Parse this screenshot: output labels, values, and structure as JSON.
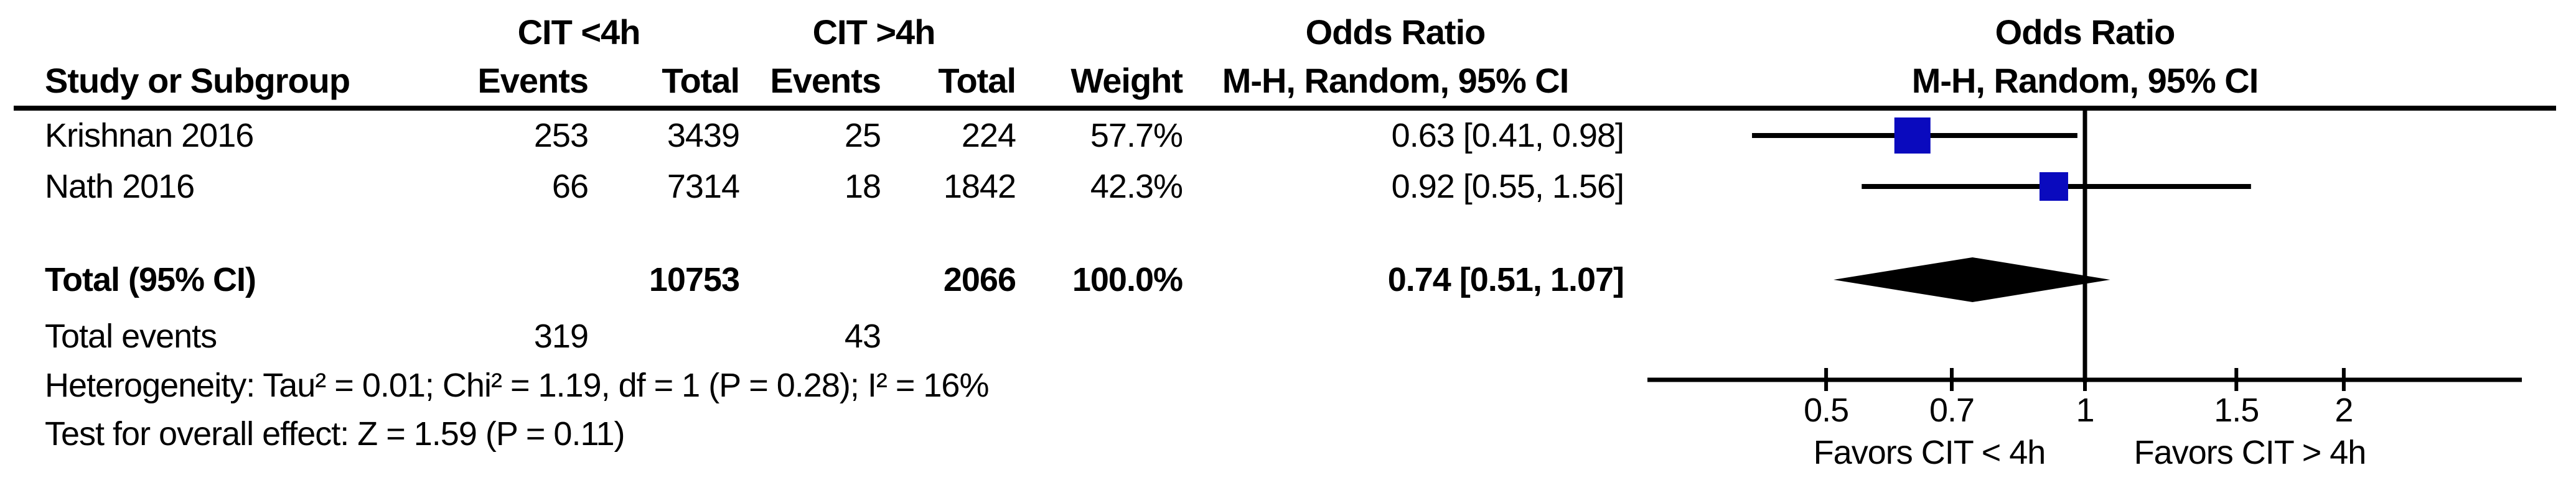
{
  "table": {
    "group_headers": {
      "group1": "CIT <4h",
      "group2": "CIT >4h",
      "or_title": "Odds Ratio",
      "or_subtitle": "M-H, Random, 95% CI"
    },
    "col_headers": {
      "study": "Study or Subgroup",
      "events1": "Events",
      "total1": "Total",
      "events2": "Events",
      "total2": "Total",
      "weight": "Weight",
      "or_ci": "M-H, Random, 95% CI"
    },
    "rows": [
      {
        "study": "Krishnan 2016",
        "events1": "253",
        "total1": "3439",
        "events2": "25",
        "total2": "224",
        "weight": "57.7%",
        "or_ci": "0.63 [0.41, 0.98]"
      },
      {
        "study": "Nath 2016",
        "events1": "66",
        "total1": "7314",
        "events2": "18",
        "total2": "1842",
        "weight": "42.3%",
        "or_ci": "0.92 [0.55, 1.56]"
      }
    ],
    "total_row": {
      "label": "Total (95% CI)",
      "total1": "10753",
      "total2": "2066",
      "weight": "100.0%",
      "or_ci": "0.74 [0.51, 1.07]"
    },
    "total_events_row": {
      "label": "Total events",
      "events1": "319",
      "events2": "43"
    },
    "heterogeneity": "Heterogeneity: Tau² = 0.01; Chi² = 1.19, df = 1 (P = 0.28); I² = 16%",
    "overall_effect": "Test for overall effect: Z = 1.59 (P = 0.11)"
  },
  "plot_header": {
    "title": "Odds Ratio",
    "subtitle": "M-H, Random, 95% CI"
  },
  "chart_data": {
    "type": "forest",
    "effect_measure": "Odds Ratio",
    "method": "M-H, Random, 95% CI",
    "x_scale": "log",
    "axis_range": [
      0.31,
      3.2
    ],
    "null_line_value": 1,
    "axis_ticks": [
      {
        "value": 0.5,
        "label": "0.5"
      },
      {
        "value": 0.7,
        "label": "0.7"
      },
      {
        "value": 1,
        "label": "1"
      },
      {
        "value": 1.5,
        "label": "1.5"
      },
      {
        "value": 2,
        "label": "2"
      }
    ],
    "studies": [
      {
        "name": "Krishnan 2016",
        "or": 0.63,
        "ci_low": 0.41,
        "ci_high": 0.98,
        "weight_pct": 57.7
      },
      {
        "name": "Nath 2016",
        "or": 0.92,
        "ci_low": 0.55,
        "ci_high": 1.56,
        "weight_pct": 42.3
      }
    ],
    "total": {
      "label": "Total (95% CI)",
      "or": 0.74,
      "ci_low": 0.51,
      "ci_high": 1.07,
      "weight_pct": 100.0
    },
    "heterogeneity": {
      "tau2": 0.01,
      "chi2": 1.19,
      "df": 1,
      "p": 0.28,
      "i2_pct": 16
    },
    "overall_effect": {
      "z": 1.59,
      "p": 0.11
    },
    "favors_left": "Favors CIT < 4h",
    "favors_right": "Favors CIT > 4h",
    "marker_color": "#0a0abe",
    "line_color": "#000000"
  }
}
